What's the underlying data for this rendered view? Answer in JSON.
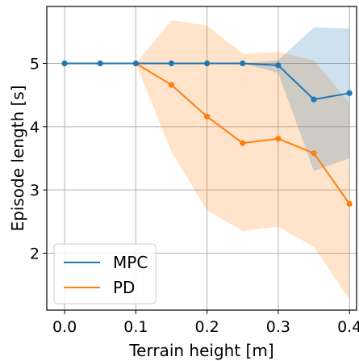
{
  "chart_data": {
    "type": "line",
    "xlabel": "Terrain height [m]",
    "ylabel": "Episode length [s]",
    "xlim": [
      -0.025,
      0.41
    ],
    "ylim": [
      1.1,
      5.9
    ],
    "xticks": [
      0.0,
      0.1,
      0.2,
      0.3,
      0.4
    ],
    "xtick_labels": [
      "0.0",
      "0.1",
      "0.2",
      "0.3",
      "0.4"
    ],
    "yticks": [
      2,
      3,
      4,
      5
    ],
    "ytick_labels": [
      "2",
      "3",
      "4",
      "5"
    ],
    "grid": true,
    "legend_position": "bottom-left",
    "x": [
      0.0,
      0.05,
      0.1,
      0.15,
      0.2,
      0.25,
      0.3,
      0.35,
      0.4
    ],
    "series": [
      {
        "name": "MPC",
        "color": "#1f77b4",
        "values": [
          5.0,
          5.0,
          5.0,
          5.0,
          5.0,
          5.0,
          4.97,
          4.43,
          4.53
        ],
        "lower": [
          5.0,
          5.0,
          5.0,
          5.0,
          5.0,
          5.0,
          4.85,
          3.3,
          3.5
        ],
        "upper": [
          5.0,
          5.0,
          5.0,
          5.0,
          5.0,
          5.0,
          5.05,
          5.57,
          5.55
        ]
      },
      {
        "name": "PD",
        "color": "#ff7f0e",
        "values": [
          5.0,
          5.0,
          5.0,
          4.66,
          4.16,
          3.74,
          3.81,
          3.58,
          2.78
        ],
        "lower": [
          5.0,
          5.0,
          5.0,
          3.6,
          2.68,
          2.35,
          2.42,
          2.1,
          1.27
        ],
        "upper": [
          5.0,
          5.0,
          5.0,
          5.68,
          5.6,
          5.15,
          5.18,
          5.05,
          4.38
        ]
      }
    ]
  }
}
